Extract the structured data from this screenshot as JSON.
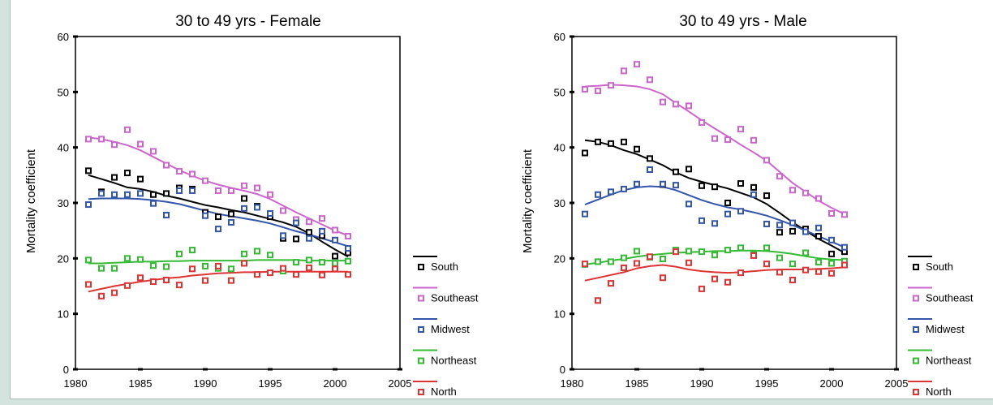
{
  "chart_data": [
    {
      "type": "scatter",
      "title": "30 to 49 yrs - Female",
      "ylabel": "Mortality coefficient",
      "xlabel": "",
      "xlim": [
        1980,
        2005
      ],
      "ylim": [
        0,
        60
      ],
      "xticks": [
        "1980",
        "1985",
        "1990",
        "1995",
        "2000",
        "2005"
      ],
      "yticks": [
        "0",
        "10",
        "20",
        "30",
        "40",
        "50",
        "60"
      ],
      "legend_position": "right",
      "x": [
        1981,
        1982,
        1983,
        1984,
        1985,
        1986,
        1987,
        1988,
        1989,
        1990,
        1991,
        1992,
        1993,
        1994,
        1995,
        1996,
        1997,
        1998,
        1999,
        2000,
        2001
      ],
      "series": [
        {
          "name": "South",
          "color": "#000000",
          "points": [
            35.8,
            32.0,
            34.6,
            35.4,
            34.3,
            31.5,
            31.7,
            32.7,
            32.5,
            28.3,
            27.5,
            28.0,
            30.8,
            29.4,
            27.5,
            23.6,
            23.5,
            24.7,
            24.1,
            20.4,
            21.0
          ],
          "trend": [
            35.0,
            34.3,
            33.6,
            32.8,
            32.5,
            32.0,
            31.3,
            30.8,
            30.2,
            29.6,
            29.2,
            28.7,
            28.3,
            27.7,
            27.1,
            26.5,
            25.7,
            24.5,
            23.0,
            21.6,
            20.3
          ]
        },
        {
          "name": "Southeast",
          "color": "#cc66cc",
          "points": [
            41.5,
            41.5,
            40.5,
            43.2,
            40.6,
            39.3,
            36.8,
            35.7,
            35.2,
            34.0,
            32.2,
            32.2,
            33.1,
            32.7,
            31.5,
            28.6,
            27.0,
            26.6,
            27.2,
            25.1,
            24.0
          ],
          "trend": [
            41.8,
            41.5,
            41.0,
            40.4,
            39.5,
            38.3,
            37.1,
            35.9,
            34.9,
            34.0,
            33.3,
            32.7,
            32.2,
            31.6,
            30.7,
            29.5,
            28.3,
            27.2,
            26.1,
            25.0,
            24.1
          ]
        },
        {
          "name": "Midwest",
          "color": "#3355aa",
          "points": [
            29.7,
            31.7,
            31.5,
            31.5,
            31.7,
            29.9,
            27.8,
            32.2,
            32.2,
            27.7,
            25.3,
            26.5,
            29.0,
            29.2,
            28.1,
            24.1,
            26.4,
            23.6,
            24.9,
            23.3,
            21.8
          ],
          "trend": [
            30.7,
            30.8,
            30.8,
            30.8,
            30.7,
            30.5,
            30.2,
            29.8,
            29.2,
            28.6,
            28.0,
            27.6,
            27.2,
            26.8,
            26.3,
            25.6,
            24.9,
            24.3,
            23.6,
            22.9,
            22.2
          ]
        },
        {
          "name": "Northeast",
          "color": "#33bb33",
          "points": [
            19.7,
            18.2,
            18.2,
            20.0,
            19.8,
            18.7,
            18.5,
            20.8,
            21.5,
            18.6,
            18.2,
            18.1,
            20.8,
            21.3,
            20.6,
            17.7,
            19.3,
            19.7,
            19.3,
            19.1,
            19.5
          ],
          "trend": [
            19.1,
            19.1,
            19.2,
            19.3,
            19.4,
            19.4,
            19.5,
            19.5,
            19.6,
            19.6,
            19.6,
            19.6,
            19.6,
            19.7,
            19.7,
            19.7,
            19.7,
            19.6,
            19.6,
            19.6,
            19.6
          ]
        },
        {
          "name": "North",
          "color": "#dd3333",
          "points": [
            15.3,
            13.2,
            13.8,
            15.1,
            16.5,
            15.8,
            16.1,
            15.2,
            18.1,
            16.0,
            18.6,
            16.0,
            19.1,
            17.1,
            17.4,
            18.2,
            17.1,
            18.3,
            17.0,
            18.1,
            17.1
          ],
          "trend": [
            14.0,
            14.5,
            15.0,
            15.4,
            15.8,
            16.1,
            16.4,
            16.6,
            16.9,
            17.1,
            17.3,
            17.4,
            17.5,
            17.5,
            17.6,
            17.6,
            17.6,
            17.6,
            17.6,
            17.6,
            17.6
          ]
        }
      ]
    },
    {
      "type": "scatter",
      "title": "30 to 49 yrs - Male",
      "ylabel": "Mortality coefficient",
      "xlabel": "",
      "xlim": [
        1980,
        2005
      ],
      "ylim": [
        0,
        60
      ],
      "xticks": [
        "1980",
        "1985",
        "1990",
        "1995",
        "2000",
        "2005"
      ],
      "yticks": [
        "0",
        "10",
        "20",
        "30",
        "40",
        "50",
        "60"
      ],
      "legend_position": "right",
      "x": [
        1981,
        1982,
        1983,
        1984,
        1985,
        1986,
        1987,
        1988,
        1989,
        1990,
        1991,
        1992,
        1993,
        1994,
        1995,
        1996,
        1997,
        1998,
        1999,
        2000,
        2001
      ],
      "series": [
        {
          "name": "South",
          "color": "#000000",
          "points": [
            39.0,
            41.0,
            40.7,
            41.0,
            39.7,
            38.0,
            33.3,
            35.6,
            36.1,
            33.1,
            32.9,
            30.0,
            33.5,
            32.8,
            31.3,
            24.7,
            24.9,
            25.3,
            24.0,
            20.8,
            21.2
          ],
          "trend": [
            41.3,
            41.0,
            40.4,
            39.5,
            38.8,
            37.8,
            36.8,
            35.5,
            34.5,
            33.8,
            33.2,
            32.6,
            31.8,
            31.0,
            29.8,
            28.2,
            26.5,
            25.0,
            23.5,
            22.3,
            21.0
          ]
        },
        {
          "name": "Southeast",
          "color": "#cc66cc",
          "points": [
            50.5,
            50.2,
            51.2,
            53.8,
            55.0,
            52.2,
            48.2,
            47.8,
            47.5,
            44.5,
            41.6,
            41.4,
            43.3,
            41.3,
            37.7,
            34.8,
            32.3,
            31.8,
            30.8,
            28.1,
            27.9
          ],
          "trend": [
            51.0,
            51.1,
            51.3,
            51.2,
            51.0,
            50.5,
            49.6,
            48.0,
            46.5,
            44.9,
            43.4,
            42.0,
            40.5,
            39.1,
            37.6,
            35.6,
            33.6,
            32.0,
            30.4,
            29.1,
            28.0
          ]
        },
        {
          "name": "Midwest",
          "color": "#3355aa",
          "points": [
            28.0,
            31.5,
            32.0,
            32.5,
            33.4,
            36.0,
            33.4,
            33.2,
            29.8,
            26.8,
            26.3,
            28.0,
            28.5,
            31.5,
            26.2,
            26.0,
            26.4,
            24.8,
            25.5,
            23.3,
            22.0
          ],
          "trend": [
            29.7,
            30.6,
            31.5,
            32.3,
            32.8,
            33.0,
            32.9,
            32.3,
            31.4,
            30.5,
            29.8,
            29.2,
            28.8,
            28.3,
            27.7,
            26.9,
            26.0,
            25.0,
            24.0,
            23.0,
            22.0
          ]
        },
        {
          "name": "Northeast",
          "color": "#33bb33",
          "points": [
            18.9,
            19.4,
            19.4,
            20.1,
            21.3,
            20.2,
            19.9,
            21.5,
            21.3,
            21.2,
            20.6,
            21.5,
            21.9,
            20.7,
            21.9,
            20.1,
            19.0,
            21.0,
            19.3,
            19.1,
            19.5
          ],
          "trend": [
            18.9,
            19.2,
            19.6,
            19.9,
            20.3,
            20.6,
            20.8,
            21.0,
            21.1,
            21.2,
            21.3,
            21.3,
            21.4,
            21.4,
            21.3,
            21.1,
            20.8,
            20.4,
            20.0,
            19.8,
            19.7
          ]
        },
        {
          "name": "North",
          "color": "#dd3333",
          "points": [
            19.0,
            12.4,
            15.5,
            18.3,
            19.1,
            20.3,
            16.5,
            21.2,
            19.2,
            14.5,
            16.3,
            15.7,
            17.4,
            20.5,
            19.0,
            17.5,
            16.1,
            17.9,
            17.6,
            17.3,
            18.8
          ],
          "trend": [
            16.0,
            16.5,
            17.0,
            17.5,
            18.2,
            18.6,
            18.8,
            18.5,
            18.0,
            17.7,
            17.5,
            17.4,
            17.5,
            17.7,
            17.9,
            18.0,
            18.0,
            18.0,
            18.1,
            18.2,
            18.4
          ]
        }
      ]
    }
  ]
}
